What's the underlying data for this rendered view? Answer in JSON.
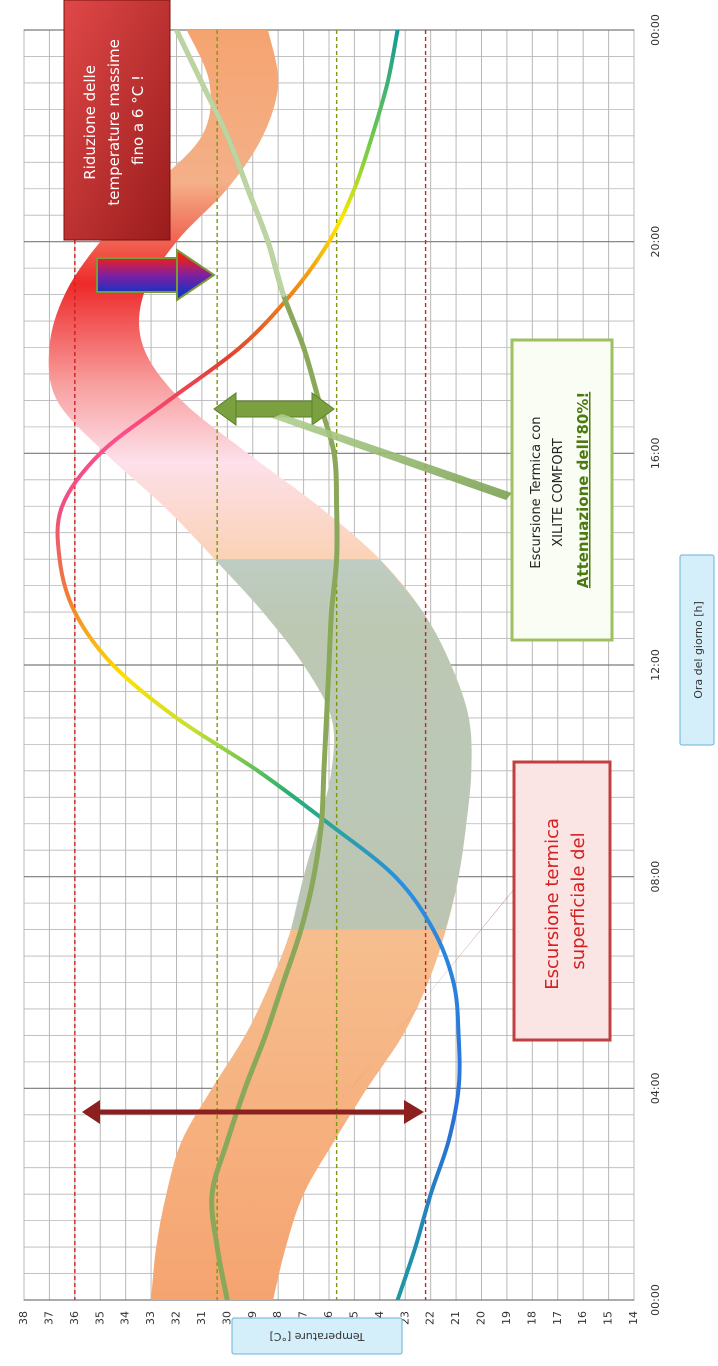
{
  "chart_data": {
    "type": "line",
    "orientation": "rotated-90-clockwise",
    "xlabel": "Ora del giorno [h]",
    "ylabel": "Temperature [°C]",
    "x_ticks": [
      "00:00",
      "04:00",
      "08:00",
      "12:00",
      "16:00",
      "20:00",
      "00:00"
    ],
    "y_ticks": [
      14,
      15,
      16,
      17,
      18,
      19,
      20,
      21,
      22,
      23,
      24,
      25,
      26,
      27,
      28,
      29,
      30,
      31,
      32,
      33,
      34,
      35,
      36,
      37,
      38
    ],
    "xlim": [
      0,
      24
    ],
    "ylim": [
      14,
      38
    ],
    "grid": true,
    "x_hours": [
      0,
      1,
      2,
      3,
      4,
      5,
      6,
      7,
      8,
      9,
      10,
      11,
      12,
      13,
      14,
      15,
      16,
      17,
      18,
      19,
      20,
      21,
      22,
      23,
      24
    ],
    "series": [
      {
        "values": [
          23.3,
          22.6,
          22.0,
          21.3,
          20.9,
          20.9,
          21.1,
          21.9,
          23.4,
          26.0,
          28.8,
          32.0,
          34.5,
          36.0,
          36.6,
          36.5,
          35.0,
          32.3,
          29.5,
          27.5,
          26.0,
          25.0,
          24.3,
          23.7,
          23.3
        ]
      },
      {
        "values": [
          30.0,
          30.4,
          30.6,
          30.0,
          29.3,
          28.5,
          27.8,
          27.1,
          26.6,
          26.3,
          26.2,
          26.1,
          26.0,
          25.9,
          25.7,
          25.7,
          25.8,
          26.4,
          27.0,
          27.8,
          28.4,
          29.2,
          30.0,
          31.0,
          32.0
        ]
      }
    ],
    "band": {
      "upper": [
        33.0,
        32.8,
        32.4,
        31.8,
        30.6,
        29.3,
        28.3,
        27.5,
        27.0,
        26.4,
        25.9,
        25.9,
        27.0,
        28.6,
        30.5,
        32.5,
        34.8,
        36.7,
        37.0,
        36.4,
        35.0,
        33.0,
        31.0,
        30.7,
        31.6
      ],
      "lower": [
        28.2,
        27.7,
        27.0,
        25.8,
        24.5,
        23.1,
        22.1,
        21.4,
        20.9,
        20.6,
        20.4,
        20.5,
        21.2,
        22.3,
        24.0,
        26.4,
        29.2,
        31.8,
        33.3,
        33.3,
        32.0,
        30.0,
        28.6,
        28.0,
        28.4
      ]
    },
    "ref_lines": [
      {
        "y": 36.0,
        "color": "#d02020"
      },
      {
        "y": 22.2,
        "color": "#d02020"
      },
      {
        "y": 30.4,
        "color": "#7a9a10"
      },
      {
        "y": 25.7,
        "color": "#7a9a10"
      }
    ],
    "annotations": [
      {
        "id": "reduction",
        "lines": [
          "Riduzione delle",
          "temperature massime",
          "fino a 6 °C !"
        ]
      },
      {
        "id": "xilite",
        "lines": [
          "Escursione Termica con",
          "XILITE COMFORT",
          "Attenuazione dell'80%!"
        ]
      },
      {
        "id": "surface",
        "lines": [
          "Escursione termica",
          "superficiale del"
        ]
      }
    ],
    "colors": {
      "plot_bg": "#ffffff",
      "grid": "#b8b8b8",
      "surface_curve": "gradient-blue-green-yellow-orange-red-magenta",
      "xilite_curve": "#8aa85a",
      "band": "#f3a878",
      "reduction_box": "#bf2a2a",
      "xilite_box_border": "#9fc060",
      "surface_box_border": "#c04040",
      "axis_label_box": "#d4eefa"
    }
  }
}
